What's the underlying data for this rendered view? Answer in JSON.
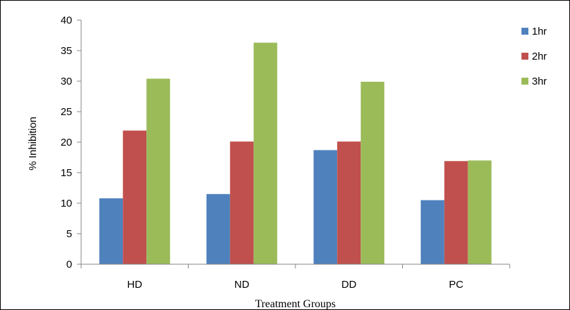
{
  "chart_data": {
    "type": "bar",
    "title": "",
    "xlabel": "Treatment Groups",
    "ylabel": "% Inhibition",
    "categories": [
      "HD",
      "ND",
      "DD",
      "PC"
    ],
    "series": [
      {
        "name": "1hr",
        "values": [
          10.8,
          11.5,
          18.7,
          10.5
        ],
        "color": "#4f81bd"
      },
      {
        "name": "2hr",
        "values": [
          21.9,
          20.1,
          20.1,
          16.9
        ],
        "color": "#c0504d"
      },
      {
        "name": "3hr",
        "values": [
          30.4,
          36.3,
          29.9,
          17.0
        ],
        "color": "#9bbb59"
      }
    ],
    "ylim": [
      0,
      40
    ],
    "yticks": [
      "0",
      "5",
      "10",
      "15",
      "20",
      "25",
      "30",
      "35",
      "40"
    ],
    "grid": false,
    "legend_position": "right"
  }
}
